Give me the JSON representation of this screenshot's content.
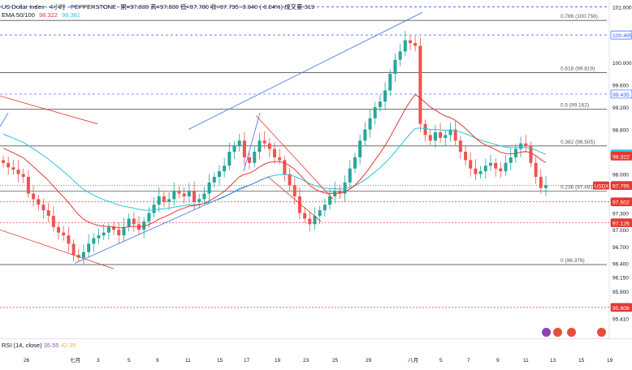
{
  "legend": {
    "symbol": "US Dollar Index · 4小时 · PEPPERSTONE",
    "ohlc": "開=97.830  高=97.830  低=97.780  收=97.795  -0.040 (-0.04%)  成交量 319",
    "ema_name": "EMA 50/100",
    "ema50": "98.322",
    "ema100": "98.361",
    "ema50_color": "#e53935",
    "ema100_color": "#26c6da"
  },
  "rsi": {
    "name": "RSI (14, close)",
    "value": "35.55",
    "ma": "42.35",
    "value_color": "#7e57c2",
    "ma_color": "#f5b041"
  },
  "chart_data": {
    "type": "candlestick",
    "symbol": "USDX",
    "ylim": [
      95.3,
      101.05
    ],
    "y_ticks": [
      101.0,
      100.0,
      99.6,
      99.2,
      98.8,
      98.0,
      97.6,
      97.3,
      97.0,
      96.7,
      96.4,
      96.15,
      95.9,
      95.41
    ],
    "x_ticks": [
      "26",
      "七月",
      "3",
      "5",
      "9",
      "11",
      "15",
      "17",
      "19",
      "23",
      "25",
      "29",
      "八月",
      "5",
      "7",
      "9",
      "11",
      "13",
      "15",
      "19"
    ],
    "fib_levels": [
      {
        "label": "0.786 (100.756)",
        "value": 100.756
      },
      {
        "label": "0.618 (99.819)",
        "value": 99.819
      },
      {
        "label": "0.5 (99.162)",
        "value": 99.162
      },
      {
        "label": "0.382 (98.505)",
        "value": 98.505
      },
      {
        "label": "0.236 (97.691)",
        "value": 97.691
      },
      {
        "label": "0 (96.376)",
        "value": 96.376
      }
    ],
    "price_tags": [
      {
        "text": "100.495",
        "value": 100.495,
        "style": "dashed-blue"
      },
      {
        "text": "99.435",
        "value": 99.435,
        "style": "dashed-blue"
      },
      {
        "text": "98.361",
        "value": 98.361,
        "style": "ema100"
      },
      {
        "text": "98.322",
        "value": 98.322,
        "style": "ema50"
      },
      {
        "text": "97.795",
        "value": 97.795,
        "style": "last"
      },
      {
        "text": "97.502",
        "value": 97.502,
        "style": "dashed-red"
      },
      {
        "text": "97.126",
        "value": 97.126,
        "style": "dashed-red"
      },
      {
        "text": "95.608",
        "value": 95.608,
        "style": "dashed-red"
      }
    ],
    "last_price_label": "USDX",
    "top_dashed_value": 101.0,
    "closes": [
      98.2,
      98.12,
      98.08,
      98.0,
      97.95,
      97.65,
      97.55,
      97.45,
      97.35,
      97.25,
      97.05,
      96.95,
      96.9,
      96.75,
      96.55,
      96.5,
      96.6,
      96.75,
      96.85,
      96.9,
      96.95,
      97.05,
      97.0,
      96.9,
      97.05,
      97.2,
      97.1,
      97.0,
      97.15,
      97.3,
      97.45,
      97.6,
      97.5,
      97.55,
      97.7,
      97.65,
      97.6,
      97.7,
      97.5,
      97.55,
      97.65,
      97.85,
      97.95,
      98.05,
      98.15,
      98.4,
      98.5,
      98.6,
      98.3,
      98.2,
      98.4,
      98.6,
      98.55,
      98.45,
      98.3,
      98.25,
      98.0,
      97.8,
      97.6,
      97.3,
      97.2,
      97.1,
      97.25,
      97.35,
      97.45,
      97.6,
      97.7,
      97.65,
      97.85,
      98.1,
      98.3,
      98.6,
      98.8,
      99.0,
      99.2,
      99.3,
      99.5,
      99.8,
      100.05,
      100.2,
      100.4,
      100.35,
      100.3,
      98.9,
      98.7,
      98.6,
      98.75,
      98.65,
      98.7,
      98.8,
      98.6,
      98.4,
      98.25,
      98.1,
      98.0,
      98.05,
      98.15,
      98.2,
      98.1,
      98.05,
      98.2,
      98.3,
      98.45,
      98.55,
      98.5,
      98.2,
      97.95,
      97.75,
      97.8
    ]
  }
}
